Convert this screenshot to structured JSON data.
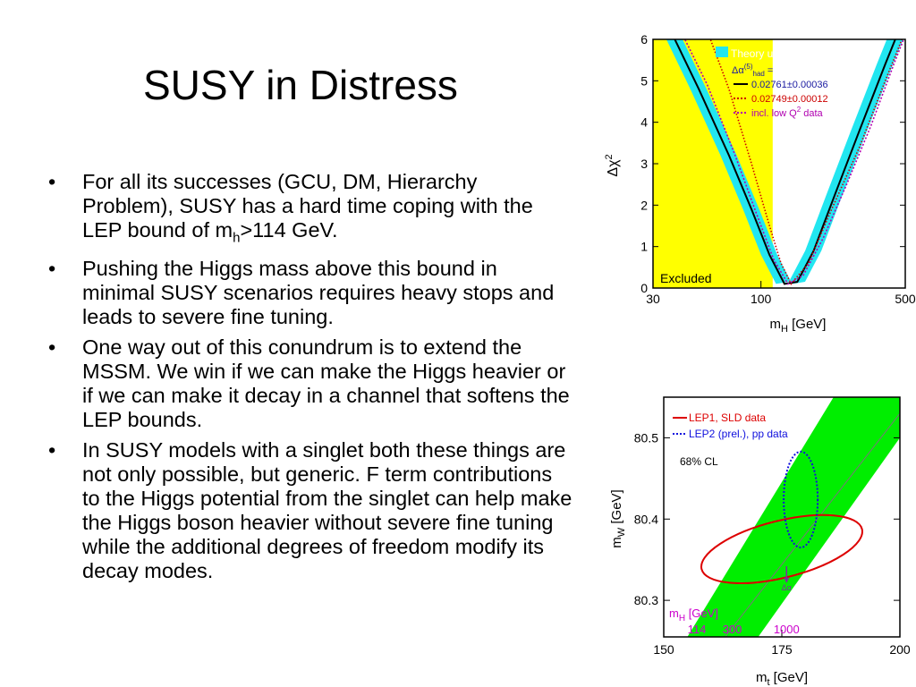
{
  "slide": {
    "title": "SUSY in Distress",
    "bullets": [
      {
        "text": "For all its successes (GCU, DM, Hierarchy Problem), SUSY has a hard time coping with the LEP bound of m",
        "sub": "h",
        "tail": ">114 GeV."
      },
      {
        "text": "Pushing the Higgs mass above this bound in minimal SUSY scenarios requires heavy stops and leads to severe fine tuning."
      },
      {
        "text": "One way out of this conundrum is to extend the MSSM. We win if we can make the Higgs heavier or if we can make it decay in a channel that softens the LEP bounds."
      },
      {
        "text": "In SUSY models with a singlet both these things are not only possible, but generic. F term contributions to the Higgs potential from the singlet can help make the Higgs boson heavier without severe fine tuning while the additional degrees of freedom modify its decay modes."
      }
    ],
    "bullet_char": "•"
  },
  "chart_data": [
    {
      "type": "line",
      "xscale": "log",
      "x_ticks": [
        "30",
        "100",
        "500"
      ],
      "y_ticks": [
        "0",
        "1",
        "2",
        "3",
        "4",
        "5",
        "6"
      ],
      "xlabel": "m",
      "xlabel_sub": "H",
      "xlabel_unit": "[GeV]",
      "ylabel": "Δχ",
      "ylabel_sup": "2",
      "xlim": [
        30,
        500
      ],
      "ylim": [
        0,
        6
      ],
      "excluded_region": {
        "label": "Excluded",
        "x_max": 114,
        "color": "#ffff00"
      },
      "band_color": "#22e6f0",
      "legend": {
        "band": "Theory uncertainty",
        "alpha_label": "Δα",
        "alpha_sup": "(5)",
        "alpha_sub": "had",
        "alpha_eq": "=",
        "entries": [
          {
            "label": "0.02761±0.00036",
            "color": "#000000",
            "style": "solid",
            "text_color": "#1a1aa0"
          },
          {
            "label": "0.02749±0.00012",
            "color": "#cc0000",
            "style": "dotted",
            "text_color": "#cc0000"
          },
          {
            "label": "incl. low Q",
            "label_sup": "2",
            "label_tail": " data",
            "color": "#b000b0",
            "style": "dotted",
            "text_color": "#b000b0"
          }
        ]
      },
      "series": [
        {
          "name": "0.02761±0.00036",
          "x": [
            35,
            50,
            70,
            90,
            110,
            130,
            150,
            180,
            230,
            300,
            400,
            500
          ],
          "y": [
            6.4,
            4.8,
            3.2,
            1.9,
            0.8,
            0.1,
            0.15,
            0.9,
            2.3,
            3.8,
            5.4,
            6.6
          ]
        },
        {
          "name": "0.02749±0.00012",
          "x": [
            55,
            70,
            90,
            110,
            125,
            140,
            170,
            220,
            300,
            400,
            500
          ],
          "y": [
            6.2,
            4.8,
            3.0,
            1.5,
            0.6,
            0.1,
            0.6,
            1.9,
            3.4,
            5.0,
            6.2
          ]
        },
        {
          "name": "incl. low Q2 data",
          "x": [
            40,
            55,
            75,
            95,
            115,
            135,
            160,
            200,
            260,
            340,
            440,
            500
          ],
          "y": [
            6.3,
            4.9,
            3.2,
            1.8,
            0.7,
            0.1,
            0.3,
            1.2,
            2.5,
            3.9,
            5.4,
            6.1
          ]
        }
      ]
    },
    {
      "type": "scatter",
      "x_ticks": [
        "150",
        "175",
        "200"
      ],
      "y_ticks": [
        "80.3",
        "80.4",
        "80.5"
      ],
      "xlabel": "m",
      "xlabel_sub": "t",
      "xlabel_unit": "[GeV]",
      "ylabel": "m",
      "ylabel_sub": "W",
      "ylabel_unit": "[GeV]",
      "xlim": [
        150,
        200
      ],
      "ylim": [
        80.255,
        80.55
      ],
      "band_color": "#00ee00",
      "cl_label": "68% CL",
      "legend": [
        {
          "label": "LEP1, SLD data",
          "color": "#dd0000",
          "style": "solid"
        },
        {
          "label": "LEP2 (prel.), pp data",
          "color": "#1010dd",
          "style": "dotted"
        }
      ],
      "ellipses": [
        {
          "name": "LEP1, SLD data",
          "cx": 175,
          "cy": 80.363,
          "rx_t": 17.5,
          "ry_w": 0.035,
          "angle_deg": -14,
          "color": "#dd0000"
        },
        {
          "name": "LEP2 (prel.), pp data",
          "cx": 179.0,
          "cy": 80.424,
          "rx_t": 3.6,
          "ry_w": 0.059,
          "angle_deg": 0,
          "color": "#1010dd"
        }
      ],
      "mh_labels": {
        "label": "m",
        "label_sub": "H",
        "label_unit": "[GeV]",
        "values": [
          "114",
          "300",
          "1000"
        ],
        "color": "#cc00cc"
      },
      "alpha_arrow_label": "Δα"
    }
  ]
}
